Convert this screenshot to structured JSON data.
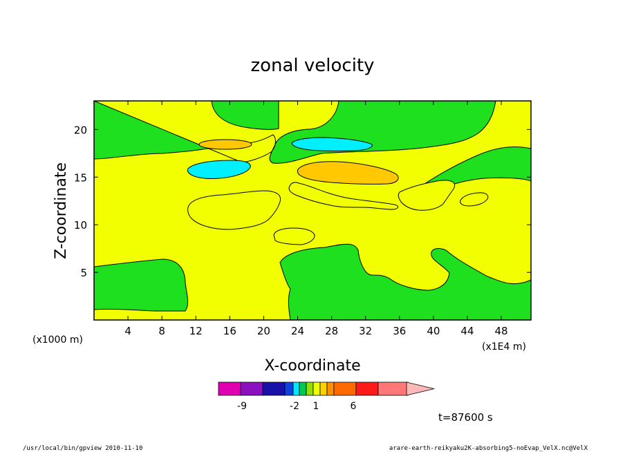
{
  "chart_data": {
    "type": "heatmap",
    "title": "zonal velocity",
    "xlabel": "X-coordinate",
    "ylabel": "Z-coordinate",
    "x_unit_left": "(x1000 m)",
    "x_unit_right": "(x1E4 m)",
    "xlim": [
      0,
      51.5
    ],
    "ylim": [
      0,
      23
    ],
    "x_ticks": [
      4,
      8,
      12,
      16,
      20,
      24,
      28,
      32,
      36,
      40,
      44,
      48
    ],
    "y_ticks": [
      5,
      10,
      15,
      20
    ],
    "time_label": "t=87600 s",
    "colorbar": {
      "colors": [
        "#e000b0",
        "#8a10c0",
        "#1810a8",
        "#1040e0",
        "#00e8ff",
        "#00c850",
        "#90e000",
        "#f0ff00",
        "#ffd000",
        "#ff9000",
        "#ff6a00",
        "#ff1a1a",
        "#ff7878",
        "#ffb8b8"
      ],
      "tick_labels": [
        "-9",
        "-2",
        "1",
        "6"
      ]
    },
    "levels": {
      "green": "#1ee01e",
      "yellow": "#f2ff00",
      "orange": "#ffc800",
      "cyan": "#00f0ff"
    },
    "features": [
      {
        "level": "cyan",
        "cx": 15,
        "cz": 15.7,
        "note": "negative"
      },
      {
        "level": "cyan",
        "cx": 28.2,
        "cz": 18.4,
        "note": "negative"
      },
      {
        "level": "orange",
        "cx": 14.3,
        "cz": 18.5,
        "note": "positive"
      },
      {
        "level": "orange",
        "cx": 29.5,
        "cz": 15.7,
        "note": "positive"
      }
    ]
  },
  "footer": {
    "left": "/usr/local/bin/gpview   2010-11-10",
    "right": "arare-earth-reikyaku2K-absorbing5-noEvap_VelX.nc@VelX"
  }
}
